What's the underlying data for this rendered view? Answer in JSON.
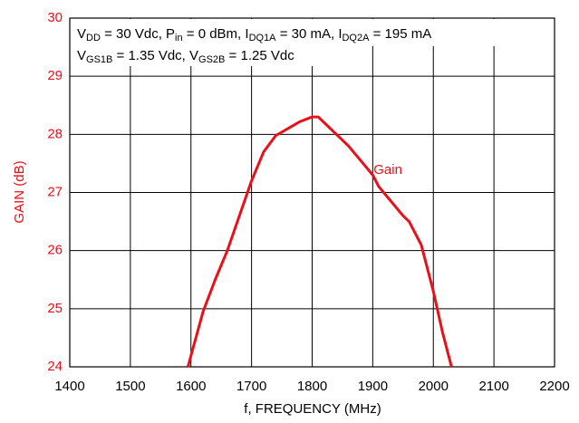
{
  "chart_data": {
    "type": "line",
    "xlabel": "f, FREQUENCY (MHz)",
    "ylabel": "GAIN (dB)",
    "annotation_lines": [
      [
        "V",
        "DD",
        " = 30 Vdc, P",
        "in",
        " = 0 dBm, I",
        "DQ1A",
        " = 30 mA, I",
        "DQ2A",
        " = 195 mA"
      ],
      [
        "V",
        "GS1B",
        " = 1.35 Vdc, V",
        "GS2B",
        " = 1.25 Vdc"
      ]
    ],
    "series": [
      {
        "name": "Gain",
        "color": "#e8101a",
        "x": [
          1595,
          1620,
          1640,
          1660,
          1680,
          1700,
          1720,
          1740,
          1760,
          1780,
          1800,
          1810,
          1820,
          1840,
          1860,
          1880,
          1900,
          1910,
          1930,
          1950,
          1960,
          1980,
          2000,
          2015,
          2030
        ],
        "values": [
          24,
          24.95,
          25.5,
          26.0,
          26.6,
          27.2,
          27.7,
          27.98,
          28.1,
          28.22,
          28.3,
          28.3,
          28.2,
          28.0,
          27.8,
          27.55,
          27.3,
          27.1,
          26.85,
          26.6,
          26.5,
          26.1,
          25.3,
          24.6,
          24
        ],
        "label_x": 1925,
        "label_y": 27.38
      }
    ],
    "xlim": [
      1400,
      2200
    ],
    "xticks": [
      1400,
      1500,
      1600,
      1700,
      1800,
      1900,
      2000,
      2100,
      2200
    ],
    "ylim": [
      24,
      30
    ],
    "yticks": [
      24,
      25,
      26,
      27,
      28,
      29,
      30
    ],
    "grid": true
  }
}
